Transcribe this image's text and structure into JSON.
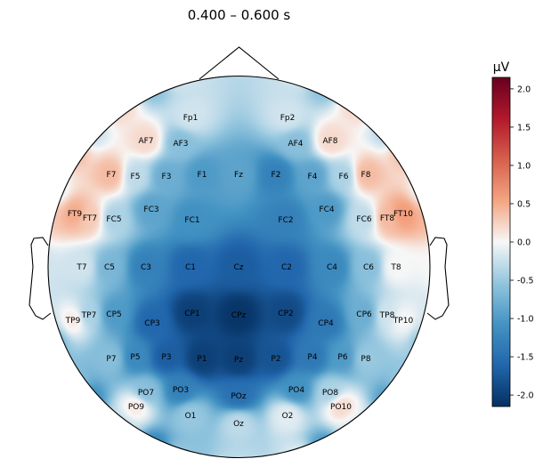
{
  "chart_data": {
    "type": "heatmap",
    "title": "0.400 – 0.600 s",
    "colorbar": {
      "unit": "µV",
      "ticks": [
        "2.0",
        "1.5",
        "1.0",
        "0.5",
        "0.0",
        "-0.5",
        "-1.0",
        "-1.5",
        "-2.0"
      ],
      "tick_values": [
        2.0,
        1.5,
        1.0,
        0.5,
        0.0,
        -0.5,
        -1.0,
        -1.5,
        -2.0
      ],
      "range": [
        -2.15,
        2.15
      ],
      "colormap": "RdBu_r"
    },
    "electrodes": [
      {
        "name": "Fp1",
        "value": -0.2
      },
      {
        "name": "Fp2",
        "value": -0.2
      },
      {
        "name": "AF7",
        "value": 0.2
      },
      {
        "name": "AF3",
        "value": -0.6
      },
      {
        "name": "AF4",
        "value": -0.6
      },
      {
        "name": "AF8",
        "value": 0.2
      },
      {
        "name": "F7",
        "value": 0.4
      },
      {
        "name": "F5",
        "value": -0.3
      },
      {
        "name": "F3",
        "value": -0.8
      },
      {
        "name": "F1",
        "value": -1.0
      },
      {
        "name": "Fz",
        "value": -0.9
      },
      {
        "name": "F2",
        "value": -1.3
      },
      {
        "name": "F4",
        "value": -0.9
      },
      {
        "name": "F6",
        "value": -0.4
      },
      {
        "name": "F8",
        "value": 0.4
      },
      {
        "name": "FT9",
        "value": 0.5
      },
      {
        "name": "FT7",
        "value": 0.3
      },
      {
        "name": "FC5",
        "value": -0.4
      },
      {
        "name": "FC3",
        "value": -0.9
      },
      {
        "name": "FC1",
        "value": -1.1
      },
      {
        "name": "FC2",
        "value": -1.3
      },
      {
        "name": "FC4",
        "value": -1.0
      },
      {
        "name": "FC6",
        "value": -0.3
      },
      {
        "name": "FT8",
        "value": 0.4
      },
      {
        "name": "FT10",
        "value": 0.6
      },
      {
        "name": "T7",
        "value": -0.2
      },
      {
        "name": "C5",
        "value": -0.7
      },
      {
        "name": "C3",
        "value": -1.3
      },
      {
        "name": "C1",
        "value": -1.6
      },
      {
        "name": "Cz",
        "value": -1.7
      },
      {
        "name": "C2",
        "value": -1.6
      },
      {
        "name": "C4",
        "value": -1.2
      },
      {
        "name": "C6",
        "value": -0.6
      },
      {
        "name": "T8",
        "value": 0.0
      },
      {
        "name": "TP9",
        "value": 0.1
      },
      {
        "name": "TP7",
        "value": -0.4
      },
      {
        "name": "CP5",
        "value": -1.0
      },
      {
        "name": "CP3",
        "value": -1.6
      },
      {
        "name": "CP1",
        "value": -2.0
      },
      {
        "name": "CPz",
        "value": -2.1
      },
      {
        "name": "CP2",
        "value": -1.9
      },
      {
        "name": "CP4",
        "value": -1.4
      },
      {
        "name": "CP6",
        "value": -0.8
      },
      {
        "name": "TP8",
        "value": -0.2
      },
      {
        "name": "TP10",
        "value": 0.0
      },
      {
        "name": "P7",
        "value": -0.6
      },
      {
        "name": "P5",
        "value": -1.2
      },
      {
        "name": "P3",
        "value": -1.7
      },
      {
        "name": "P1",
        "value": -2.0
      },
      {
        "name": "Pz",
        "value": -2.0
      },
      {
        "name": "P2",
        "value": -1.8
      },
      {
        "name": "P4",
        "value": -1.4
      },
      {
        "name": "P6",
        "value": -1.0
      },
      {
        "name": "P8",
        "value": -0.5
      },
      {
        "name": "PO7",
        "value": -0.6
      },
      {
        "name": "PO3",
        "value": -1.3
      },
      {
        "name": "POz",
        "value": -1.5
      },
      {
        "name": "PO4",
        "value": -1.1
      },
      {
        "name": "PO8",
        "value": -0.4
      },
      {
        "name": "PO9",
        "value": 0.1
      },
      {
        "name": "O1",
        "value": -0.5
      },
      {
        "name": "Oz",
        "value": -0.3
      },
      {
        "name": "O2",
        "value": -0.1
      },
      {
        "name": "PO10",
        "value": 0.2
      }
    ]
  }
}
